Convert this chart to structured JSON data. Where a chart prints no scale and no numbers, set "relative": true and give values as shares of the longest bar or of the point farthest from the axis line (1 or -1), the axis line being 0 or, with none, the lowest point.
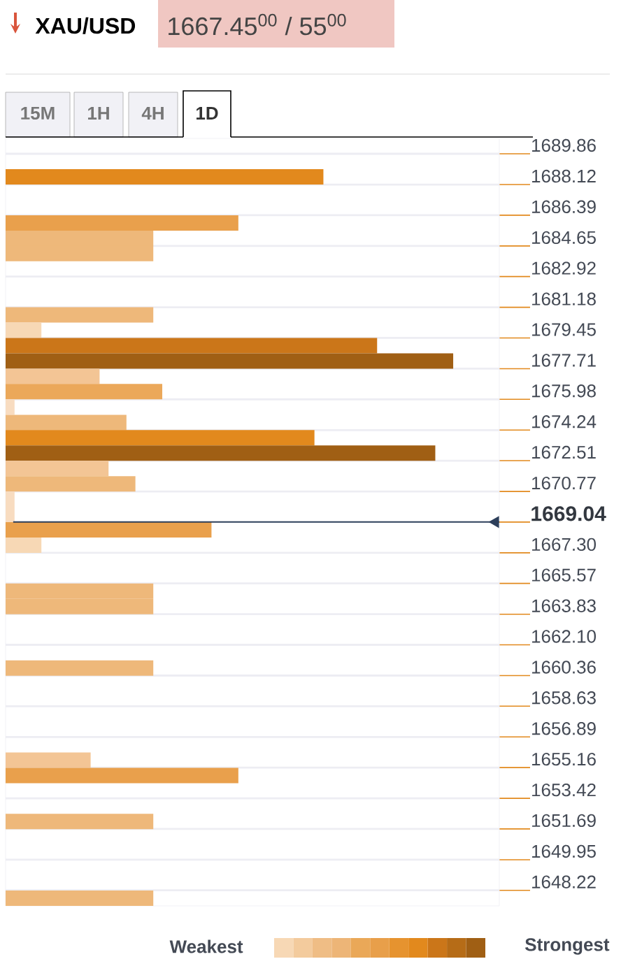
{
  "chart_data": {
    "type": "bar",
    "orientation": "horizontal",
    "relative": true,
    "title": "XAU/USD",
    "subtitle": "1667.45$^{00}$ / 55$^{00}$",
    "x": [
      1688.56,
      1685.95,
      1685.08,
      1684.22,
      1680.75,
      1679.88,
      1679.01,
      1678.14,
      1677.27,
      1676.41,
      1675.54,
      1674.67,
      1673.81,
      1672.94,
      1672.07,
      1671.2,
      1670.33,
      1669.47,
      1668.6,
      1667.73,
      1665.13,
      1664.26,
      1660.79,
      1655.58,
      1654.71,
      1652.11,
      1647.77
    ],
    "values": [
      0.71,
      0.52,
      0.33,
      0.33,
      0.33,
      0.08,
      0.83,
      1,
      0.21,
      0.35,
      0.02,
      0.27,
      0.69,
      0.96,
      0.23,
      0.29,
      0.02,
      0.02,
      0.46,
      0.08,
      0.33,
      0.33,
      0.33,
      0.19,
      0.52,
      0.33,
      0.33
    ],
    "colors": [
      "#e2891d",
      "#e9a04c",
      "#eeb87a",
      "#eeb87a",
      "#eeb87a",
      "#f7d8b5",
      "#cb7619",
      "#a05f14",
      "#f3c595",
      "#eba85a",
      "#f8dcc0",
      "#eeb87a",
      "#e2891d",
      "#a05f14",
      "#f3c595",
      "#eeb87a",
      "#f8dcc0",
      "#f8dcc0",
      "#e9a04c",
      "#f7d8b5",
      "#eeb87a",
      "#eeb87a",
      "#eeb87a",
      "#f3c595",
      "#e9a04c",
      "#eeb87a",
      "#eeb87a"
    ],
    "ylim": [
      1647.34,
      1690.73
    ],
    "yticks": [
      1689.86,
      1688.12,
      1686.39,
      1684.65,
      1682.92,
      1681.18,
      1679.45,
      1677.71,
      1675.98,
      1674.24,
      1672.51,
      1670.77,
      {
        "value": 1667.3,
        "label": "1667.30"
      },
      1665.57,
      1663.83,
      {
        "value": 1662.1,
        "label": "1662.10"
      },
      1660.36,
      1658.63,
      1656.89,
      1655.16,
      1653.42,
      1651.69,
      1649.95,
      1648.22
    ],
    "grid": "y",
    "ref_lines": [
      {
        "axis": "y",
        "value": 1669.04,
        "label": "1669.04",
        "color": "#2c3e5a"
      }
    ],
    "annotations": [
      "15M",
      "1H",
      "4H",
      "1D",
      "Weakest",
      "Strongest"
    ]
  }
}
